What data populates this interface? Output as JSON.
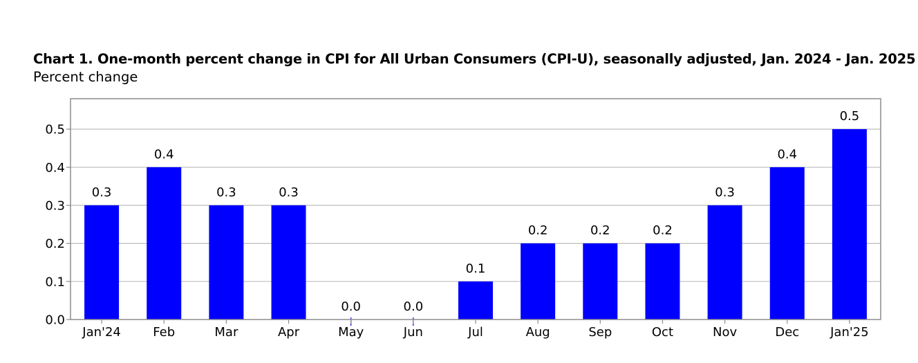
{
  "title": "Chart 1. One-month percent change in CPI for All Urban Consumers (CPI-U), seasonally adjusted, Jan. 2024 - Jan. 2025",
  "subtitle": "Percent change",
  "colors": {
    "bar": "#0000ff",
    "grid": "#bdbdbd",
    "frame": "#8c8c8c"
  },
  "chart_data": {
    "type": "bar",
    "title": "Chart 1. One-month percent change in CPI for All Urban Consumers (CPI-U), seasonally adjusted, Jan. 2024 - Jan. 2025",
    "ylabel": "Percent change",
    "xlabel": "",
    "categories": [
      "Jan'24",
      "Feb",
      "Mar",
      "Apr",
      "May",
      "Jun",
      "Jul",
      "Aug",
      "Sep",
      "Oct",
      "Nov",
      "Dec",
      "Jan'25"
    ],
    "values": [
      0.3,
      0.4,
      0.3,
      0.3,
      0.0,
      0.0,
      0.1,
      0.2,
      0.2,
      0.2,
      0.3,
      0.4,
      0.5
    ],
    "data_labels": [
      "0.3",
      "0.4",
      "0.3",
      "0.3",
      "0.0",
      "0.0",
      "0.1",
      "0.2",
      "0.2",
      "0.2",
      "0.3",
      "0.4",
      "0.5"
    ],
    "yticks": [
      0.0,
      0.1,
      0.2,
      0.3,
      0.4,
      0.5
    ],
    "ytick_labels": [
      "0.0",
      "0.1",
      "0.2",
      "0.3",
      "0.4",
      "0.5"
    ],
    "ylim": [
      0,
      0.58
    ],
    "grid": true,
    "legend": "none"
  }
}
